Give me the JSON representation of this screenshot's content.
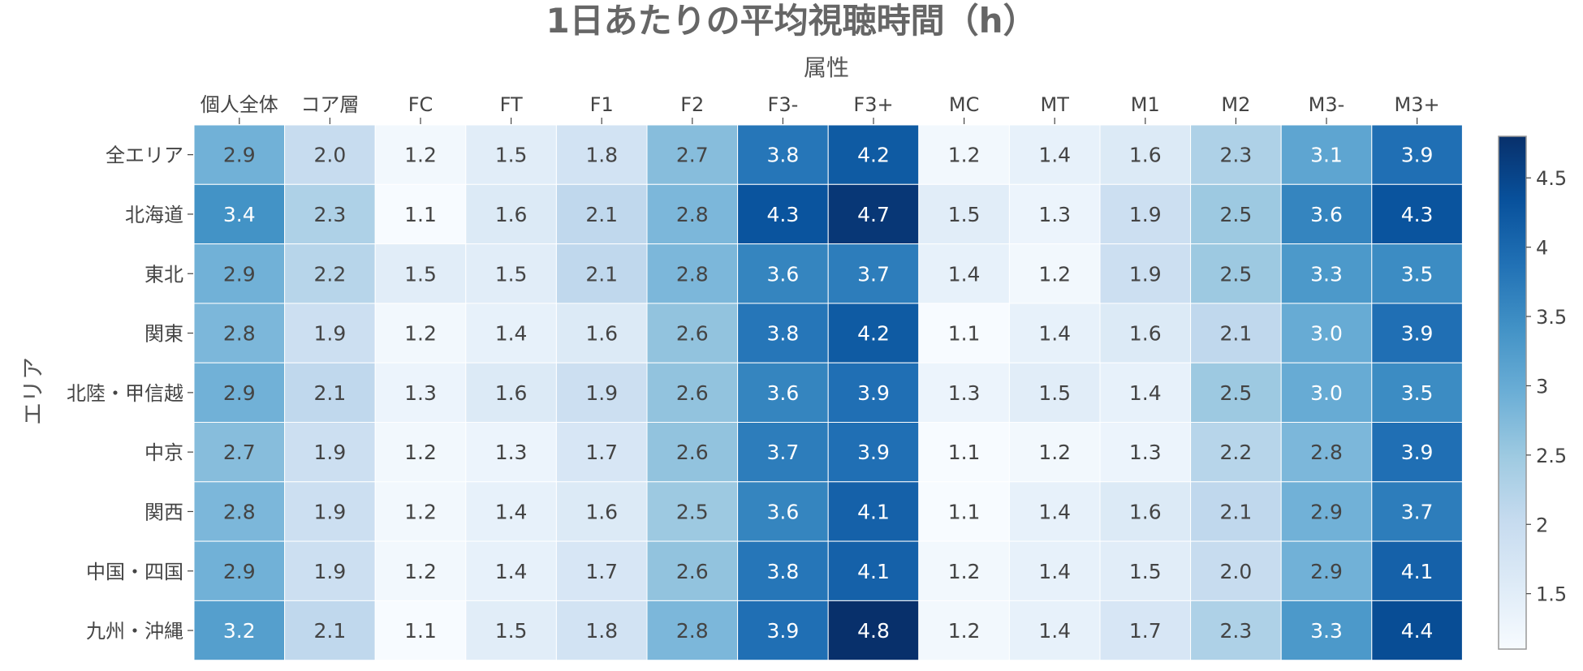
{
  "chart_data": {
    "type": "heatmap",
    "title": "1日あたりの平均視聴時間（h）",
    "xlabel": "属性",
    "ylabel": "エリア",
    "x": [
      "個人全体",
      "コア層",
      "FC",
      "FT",
      "F1",
      "F2",
      "F3-",
      "F3+",
      "MC",
      "MT",
      "M1",
      "M2",
      "M3-",
      "M3+"
    ],
    "y": [
      "全エリア",
      "北海道",
      "東北",
      "関東",
      "北陸・甲信越",
      "中京",
      "関西",
      "中国・四国",
      "九州・沖縄"
    ],
    "z": [
      [
        2.9,
        2.0,
        1.2,
        1.5,
        1.8,
        2.7,
        3.8,
        4.2,
        1.2,
        1.4,
        1.6,
        2.3,
        3.1,
        3.9
      ],
      [
        3.4,
        2.3,
        1.1,
        1.6,
        2.1,
        2.8,
        4.3,
        4.7,
        1.5,
        1.3,
        1.9,
        2.5,
        3.6,
        4.3
      ],
      [
        2.9,
        2.2,
        1.5,
        1.5,
        2.1,
        2.8,
        3.6,
        3.7,
        1.4,
        1.2,
        1.9,
        2.5,
        3.3,
        3.5
      ],
      [
        2.8,
        1.9,
        1.2,
        1.4,
        1.6,
        2.6,
        3.8,
        4.2,
        1.1,
        1.4,
        1.6,
        2.1,
        3.0,
        3.9
      ],
      [
        2.9,
        2.1,
        1.3,
        1.6,
        1.9,
        2.6,
        3.6,
        3.9,
        1.3,
        1.5,
        1.4,
        2.5,
        3.0,
        3.5
      ],
      [
        2.7,
        1.9,
        1.2,
        1.3,
        1.7,
        2.6,
        3.7,
        3.9,
        1.1,
        1.2,
        1.3,
        2.2,
        2.8,
        3.9
      ],
      [
        2.8,
        1.9,
        1.2,
        1.4,
        1.6,
        2.5,
        3.6,
        4.1,
        1.1,
        1.4,
        1.6,
        2.1,
        2.9,
        3.7
      ],
      [
        2.9,
        1.9,
        1.2,
        1.4,
        1.7,
        2.6,
        3.8,
        4.1,
        1.2,
        1.4,
        1.5,
        2.0,
        2.9,
        4.1
      ],
      [
        3.2,
        2.1,
        1.1,
        1.5,
        1.8,
        2.8,
        3.9,
        4.8,
        1.2,
        1.4,
        1.7,
        2.3,
        3.3,
        4.4
      ]
    ],
    "colorscale": "Blues",
    "zmin": 1.1,
    "zmax": 4.8,
    "colorbar_ticks": [
      "1.5",
      "2",
      "2.5",
      "3",
      "3.5",
      "4",
      "4.5"
    ],
    "x_axis_position": "top",
    "grid": false,
    "legend": "colorbar-right"
  }
}
